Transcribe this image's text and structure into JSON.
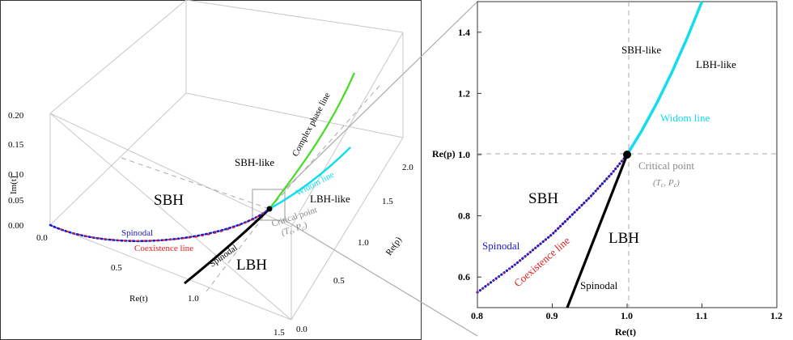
{
  "chart_data": [
    {
      "type": "line",
      "subtype": "3d",
      "axes": {
        "x": {
          "label": "Re(t)",
          "range": [
            0.0,
            1.5
          ],
          "ticks": [
            "0.0",
            "0.5",
            "1.0",
            "1.5"
          ]
        },
        "y": {
          "label": "Re(p)",
          "range": [
            0.0,
            2.0
          ],
          "ticks": [
            "0.0",
            "0.5",
            "1.0",
            "1.5",
            "2.0"
          ]
        },
        "z": {
          "label": "Im(t)",
          "range": [
            0.0,
            0.2
          ],
          "ticks": [
            "0.00",
            "0.05",
            "0.10",
            "0.15",
            "0.20"
          ]
        }
      },
      "series": [
        {
          "name": "Spinodal",
          "color": "#1a1acc",
          "style": "dotted",
          "points": [
            [
              0.0,
              0.0,
              0
            ],
            [
              0.2,
              0.0,
              0
            ],
            [
              0.4,
              0.03,
              0
            ],
            [
              0.6,
              0.13,
              0
            ],
            [
              0.8,
              0.4,
              0
            ],
            [
              0.9,
              0.65,
              0
            ],
            [
              1.0,
              1.0,
              0
            ]
          ]
        },
        {
          "name": "Coexistence line",
          "color": "#e02020",
          "style": "dotted",
          "points": [
            [
              0.0,
              0.0,
              0
            ],
            [
              0.2,
              0.0,
              0
            ],
            [
              0.4,
              0.03,
              0
            ],
            [
              0.6,
              0.13,
              0
            ],
            [
              0.8,
              0.4,
              0
            ],
            [
              0.9,
              0.65,
              0
            ],
            [
              1.0,
              1.0,
              0
            ]
          ]
        },
        {
          "name": "Spinodal",
          "color": "#000000",
          "style": "solid",
          "points": [
            [
              0.6,
              0.0,
              0
            ],
            [
              0.92,
              0.5,
              0
            ],
            [
              1.0,
              1.0,
              0
            ]
          ]
        },
        {
          "name": "Widom line",
          "color": "#11ddee",
          "style": "solid",
          "points": [
            [
              1.0,
              1.0,
              0
            ],
            [
              1.1,
              1.28,
              0
            ],
            [
              1.2,
              1.56,
              0
            ],
            [
              1.3,
              1.84,
              0
            ]
          ]
        },
        {
          "name": "Complex phase line",
          "color": "#44dd22",
          "style": "solid",
          "points": [
            [
              1.0,
              1.0,
              0.0
            ],
            [
              1.08,
              1.25,
              0.05
            ],
            [
              1.16,
              1.52,
              0.11
            ],
            [
              1.25,
              1.8,
              0.18
            ]
          ]
        }
      ],
      "critical_point": [
        1.0,
        1.0,
        0.0
      ],
      "annotations": [
        "SBH",
        "LBH",
        "SBH-like",
        "LBH-like",
        "Critical point",
        "(Tc, Pc)"
      ],
      "grid": false,
      "legend": "none"
    },
    {
      "type": "line",
      "xlabel": "Re(t)",
      "ylabel": "Re(p)",
      "xlim": [
        0.8,
        1.2
      ],
      "ylim": [
        0.5,
        1.5
      ],
      "xticks": [
        "0.8",
        "0.9",
        "1.0",
        "1.1",
        "1.2"
      ],
      "yticks": [
        "0.6",
        "0.8",
        "1.0",
        "1.2",
        "1.4"
      ],
      "series": [
        {
          "name": "Spinodal",
          "color": "#1a1acc",
          "style": "dotted",
          "x": [
            0.8,
            0.85,
            0.9,
            0.95,
            0.98,
            1.0
          ],
          "y": [
            0.55,
            0.64,
            0.74,
            0.86,
            0.94,
            1.0
          ]
        },
        {
          "name": "Coexistence line",
          "color": "#e02020",
          "style": "dotted",
          "x": [
            0.8,
            0.85,
            0.9,
            0.95,
            0.98,
            1.0
          ],
          "y": [
            0.55,
            0.64,
            0.74,
            0.86,
            0.94,
            1.0
          ]
        },
        {
          "name": "Spinodal",
          "color": "#000000",
          "style": "solid",
          "x": [
            0.92,
            0.96,
            1.0
          ],
          "y": [
            0.5,
            0.75,
            1.0
          ]
        },
        {
          "name": "Widom line",
          "color": "#11ddee",
          "style": "solid",
          "x": [
            1.0,
            1.02,
            1.04,
            1.06,
            1.08,
            1.1
          ],
          "y": [
            1.0,
            1.08,
            1.17,
            1.27,
            1.38,
            1.5
          ]
        }
      ],
      "critical_point": [
        1.0,
        1.0
      ],
      "reference_lines": {
        "x": 1.0,
        "y": 1.0
      },
      "annotations": [
        "SBH",
        "LBH",
        "SBH-like",
        "LBH-like",
        "Critical point",
        "(Tc, Pc)"
      ],
      "grid": false,
      "legend": "none"
    }
  ],
  "labels3d": {
    "sbh": "SBH",
    "lbh": "LBH",
    "sbh_like": "SBH-like",
    "lbh_like": "LBH-like",
    "spinodal_blue": "Spinodal",
    "coexistence": "Coexistence line",
    "spinodal_black": "Spinodal",
    "widom": "Widom line",
    "complex": "Complex phase line",
    "critical": "Critical point",
    "critical_sym": "(T",
    "xlabel": "Re(t)",
    "ylabel": "Re(p)",
    "zlabel": "Im(t)"
  },
  "labels2d": {
    "sbh": "SBH",
    "lbh": "LBH",
    "sbh_like": "SBH-like",
    "lbh_like": "LBH-like",
    "spinodal_blue": "Spinodal",
    "coexistence": "Coexistence line",
    "spinodal_black": "Spinodal",
    "widom": "Widom line",
    "critical": "Critical point",
    "xlabel": "Re(t)",
    "ylabel": "Re(p)"
  },
  "colors": {
    "blue": "#1a1acc",
    "red": "#e02020",
    "cyan": "#11ddee",
    "green": "#44dd22",
    "black": "#000000",
    "gray": "#888888"
  }
}
